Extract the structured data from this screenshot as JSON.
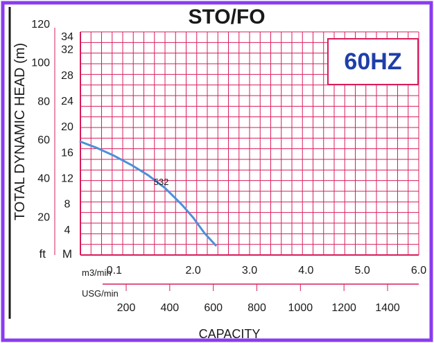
{
  "colors": {
    "frame": "#8a3cf0",
    "grid": "#d81b5c",
    "curve": "#4a90d9",
    "badge_text": "#1f3fa8",
    "text": "#1a1a1a"
  },
  "chart_data": {
    "type": "line",
    "title": "STO/FO",
    "badge": "60HZ",
    "ylabel": "TOTAL DYNAMIC HEAD (m)",
    "xlabel": "CAPACITY",
    "y_unit_ft": "ft",
    "y_unit_m": "M",
    "x_unit_m3": "m3/min",
    "x_unit_usg": "USG/min",
    "grid": true,
    "xlim": [
      0,
      6.0
    ],
    "ylim": [
      0,
      36
    ],
    "y_ticks_m": [
      4,
      8,
      12,
      16,
      20,
      24,
      28,
      32,
      34
    ],
    "y_ticks_ft": [
      20,
      40,
      60,
      80,
      100,
      120
    ],
    "x_ticks_m3": [
      0.1,
      2.0,
      3.0,
      4.0,
      5.0,
      6.0
    ],
    "x_ticks_m3_labels": [
      "0.1",
      "2.0",
      "3.0",
      "4.0",
      "5.0",
      "6.0"
    ],
    "x_ticks_usg": [
      200,
      400,
      600,
      800,
      1000,
      1200,
      1400
    ],
    "series": [
      {
        "name": "532",
        "points": [
          [
            0.0,
            17.6
          ],
          [
            0.3,
            16.6
          ],
          [
            0.6,
            15.4
          ],
          [
            0.9,
            14.0
          ],
          [
            1.2,
            12.4
          ],
          [
            1.5,
            10.4
          ],
          [
            1.8,
            7.8
          ],
          [
            2.0,
            5.8
          ],
          [
            2.2,
            3.4
          ],
          [
            2.4,
            1.5
          ]
        ]
      }
    ]
  }
}
